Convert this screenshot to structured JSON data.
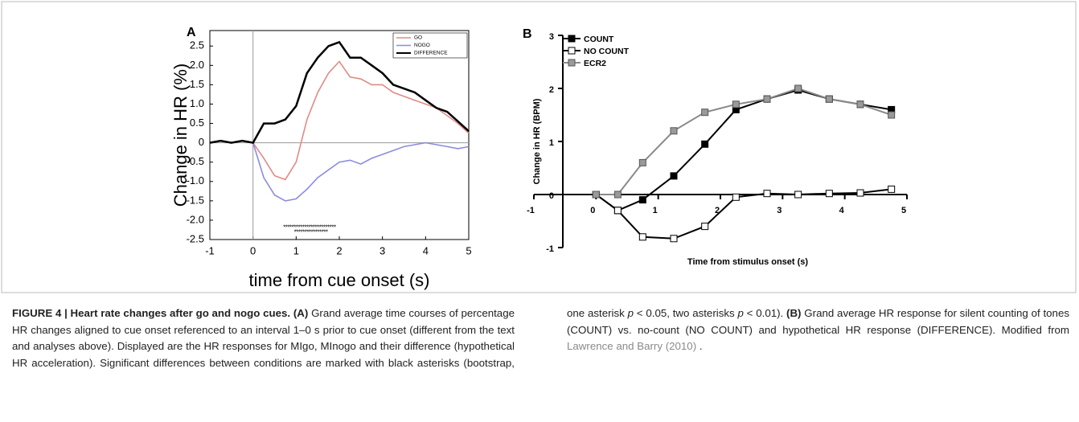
{
  "chart_data": [
    {
      "type": "line",
      "panel": "A",
      "xlabel": "time from cue onset (s)",
      "ylabel": "Change in HR (%)",
      "x": [
        -1,
        -0.75,
        -0.5,
        -0.25,
        0,
        0.25,
        0.5,
        0.75,
        1,
        1.25,
        1.5,
        1.75,
        2,
        2.25,
        2.5,
        2.75,
        3,
        3.25,
        3.5,
        3.75,
        4,
        4.25,
        4.5,
        4.75,
        5
      ],
      "series": [
        {
          "name": "GO",
          "color": "#e08a86",
          "values": [
            0,
            0.05,
            0,
            0.05,
            0,
            -0.4,
            -0.85,
            -0.95,
            -0.5,
            0.6,
            1.3,
            1.8,
            2.1,
            1.7,
            1.65,
            1.5,
            1.5,
            1.3,
            1.2,
            1.1,
            1.0,
            0.9,
            0.7,
            0.5,
            0.25
          ]
        },
        {
          "name": "NOGO",
          "color": "#8c8ce0",
          "values": [
            0,
            0.05,
            0,
            0.05,
            0,
            -0.9,
            -1.35,
            -1.5,
            -1.45,
            -1.2,
            -0.9,
            -0.7,
            -0.5,
            -0.45,
            -0.55,
            -0.4,
            -0.3,
            -0.2,
            -0.1,
            -0.05,
            0,
            -0.05,
            -0.1,
            -0.15,
            -0.1
          ]
        },
        {
          "name": "DIFFERENCE",
          "color": "#000000",
          "values": [
            0,
            0.05,
            0,
            0.05,
            0,
            0.5,
            0.5,
            0.6,
            0.95,
            1.8,
            2.2,
            2.5,
            2.6,
            2.2,
            2.2,
            2.0,
            1.8,
            1.5,
            1.4,
            1.3,
            1.1,
            0.9,
            0.8,
            0.55,
            0.3
          ]
        }
      ],
      "xlim": [
        -1,
        5
      ],
      "ylim": [
        -2.5,
        2.9
      ],
      "xticks": [
        -1,
        0,
        1,
        2,
        3,
        4,
        5
      ],
      "yticks": [
        {
          "value": 2.5,
          "label": "2.5"
        },
        {
          "value": 2,
          "label": "2.0"
        },
        {
          "value": 1.5,
          "label": "1.5"
        },
        {
          "value": 1,
          "label": "1.0"
        },
        0.5,
        0,
        -0.5,
        {
          "value": -1,
          "label": "-1.0"
        },
        -1.5,
        {
          "value": -2,
          "label": "-2.0"
        },
        -2.5
      ],
      "zero_lines": true,
      "legend": "upper right",
      "annotations": [
        {
          "text": "*************************",
          "x": 0.7,
          "y": -2.2
        },
        {
          "text": "****************",
          "x": 0.95,
          "y": -2.32
        }
      ]
    },
    {
      "type": "line",
      "panel": "B",
      "xlabel": "Time from stimulus onset (s)",
      "ylabel": "Change in HR (BPM)",
      "x": [
        0,
        0.35,
        0.75,
        1.25,
        1.75,
        2.25,
        2.75,
        3.25,
        3.75,
        4.25,
        4.75
      ],
      "series": [
        {
          "name": "COUNT",
          "color": "#000000",
          "marker_color": "#000000",
          "values": [
            0,
            -0.3,
            -0.1,
            0.35,
            0.95,
            1.6,
            1.8,
            1.97,
            1.8,
            1.7,
            1.6
          ]
        },
        {
          "name": "NO COUNT",
          "color": "#000000",
          "marker_color": "#ffffff",
          "values": [
            0,
            -0.3,
            -0.8,
            -0.83,
            -0.6,
            -0.05,
            0.02,
            0,
            0.02,
            0.03,
            0.1
          ]
        },
        {
          "name": "ECR2",
          "color": "#8a8a8a",
          "marker_color": "#9a9a9a",
          "values": [
            0,
            0,
            0.6,
            1.2,
            1.55,
            1.7,
            1.8,
            2.0,
            1.8,
            1.7,
            1.5
          ]
        }
      ],
      "xlim": [
        -1,
        5
      ],
      "ylim": [
        -1,
        3
      ],
      "xticks": [
        -1,
        0,
        1,
        2,
        3,
        4,
        5
      ],
      "yticks": [
        -1,
        0,
        1,
        2,
        3
      ],
      "marker": "square",
      "legend": "upper left"
    }
  ],
  "caption": {
    "segments": [
      {
        "text": "FIGURE 4 | Heart rate changes after go and nogo cues.",
        "style": "bold"
      },
      {
        "text": "(A)",
        "style": "bold"
      },
      {
        "text": "Grand average time courses of percentage HR changes aligned to cue onset referenced to an interval 1–0 s prior to cue onset (different from the text and analyses above). Displayed are the HR responses for MIgo, MInogo and their difference (hypothetical HR acceleration). Significant differences between conditions are marked with black asterisks (bootstrap, one asterisk",
        "style": "normal"
      },
      {
        "text": "p",
        "style": "italic"
      },
      {
        "text": "< 0.05, two asterisks",
        "style": "normal"
      },
      {
        "text": "p",
        "style": "italic"
      },
      {
        "text": "< 0.01).",
        "style": "normal"
      },
      {
        "text": "(B)",
        "style": "bold"
      },
      {
        "text": "Grand average HR response for silent counting of tones (COUNT) vs. no-count (NO COUNT) and hypothetical HR response (DIFFERENCE). Modified from",
        "style": "normal"
      },
      {
        "text": "Lawrence and Barry (2010)",
        "style": "link"
      },
      {
        "text": ".",
        "style": "normal"
      }
    ]
  }
}
